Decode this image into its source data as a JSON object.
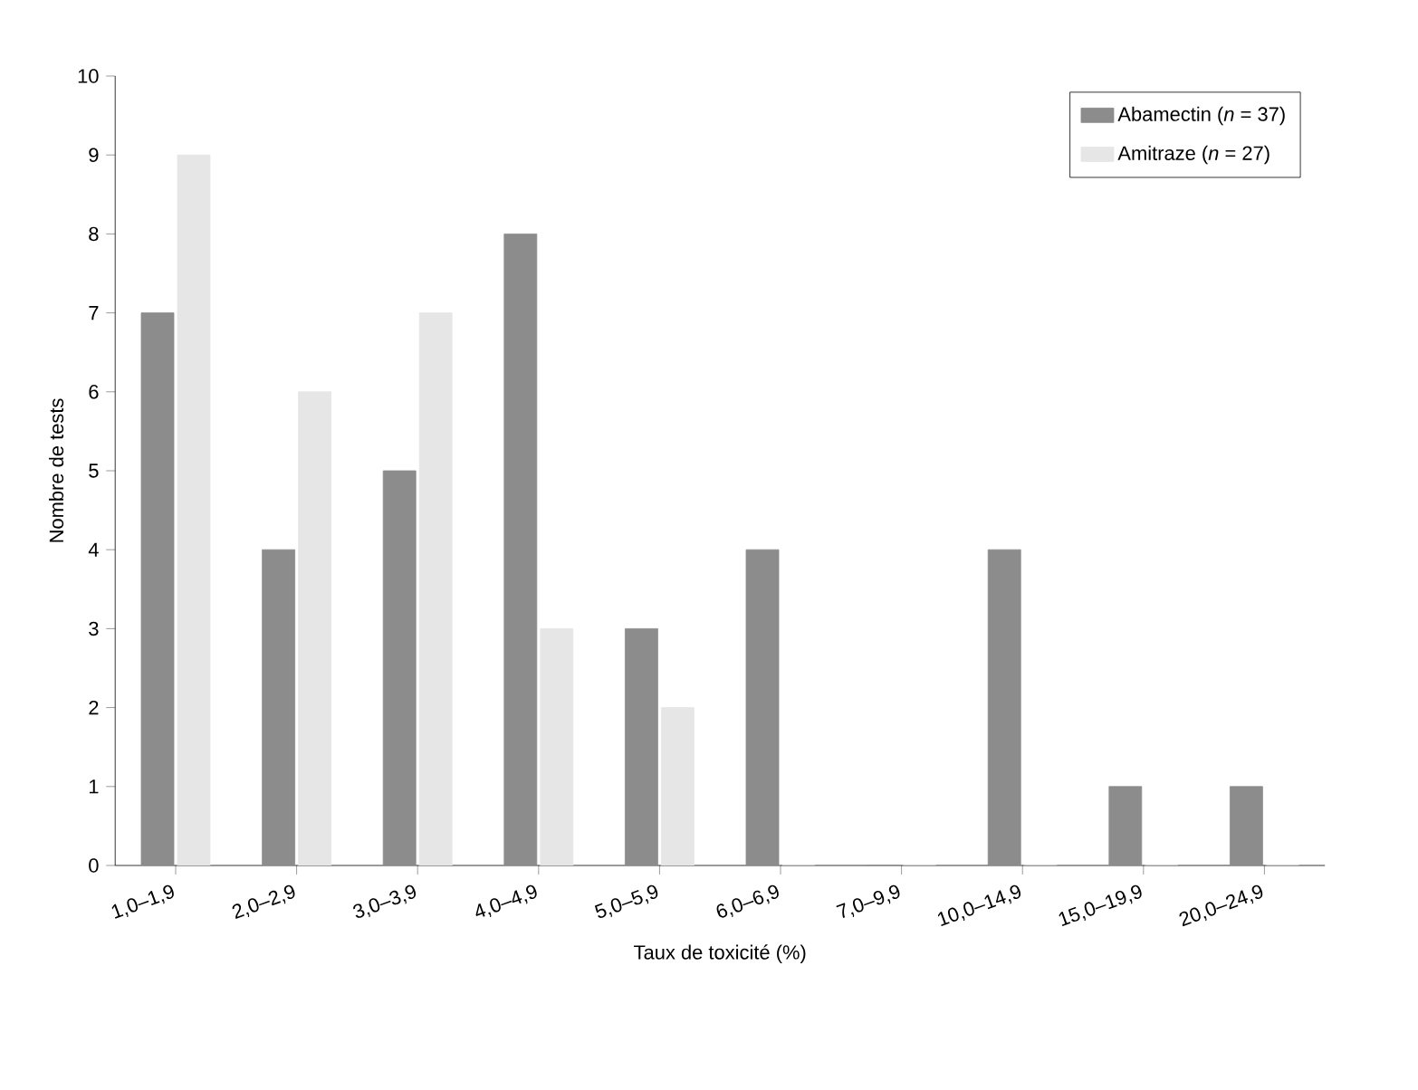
{
  "chart_data": {
    "type": "bar",
    "xlabel": "Taux de toxicité (%)",
    "ylabel": "Nombre de tests",
    "categories": [
      "1,0–1,9",
      "2,0–2,9",
      "3,0–3,9",
      "4,0–4,9",
      "5,0–5,9",
      "6,0–6,9",
      "7,0–9,9",
      "10,0–14,9",
      "15,0–19,9",
      "20,0–24,9"
    ],
    "series": [
      {
        "name": "Abamectin (*n* = 37)",
        "color": "#8c8c8c",
        "values": [
          7,
          4,
          5,
          8,
          3,
          4,
          0,
          4,
          1,
          1
        ]
      },
      {
        "name": "Amitraze (*n* = 27)",
        "color": "#e6e6e6",
        "values": [
          9,
          6,
          7,
          3,
          2,
          0,
          0,
          0,
          0,
          0
        ]
      }
    ],
    "ylim": [
      0,
      10
    ],
    "yticks": [
      0,
      1,
      2,
      3,
      4,
      5,
      6,
      7,
      8,
      9,
      10
    ],
    "grid": false,
    "legend": "top right"
  }
}
